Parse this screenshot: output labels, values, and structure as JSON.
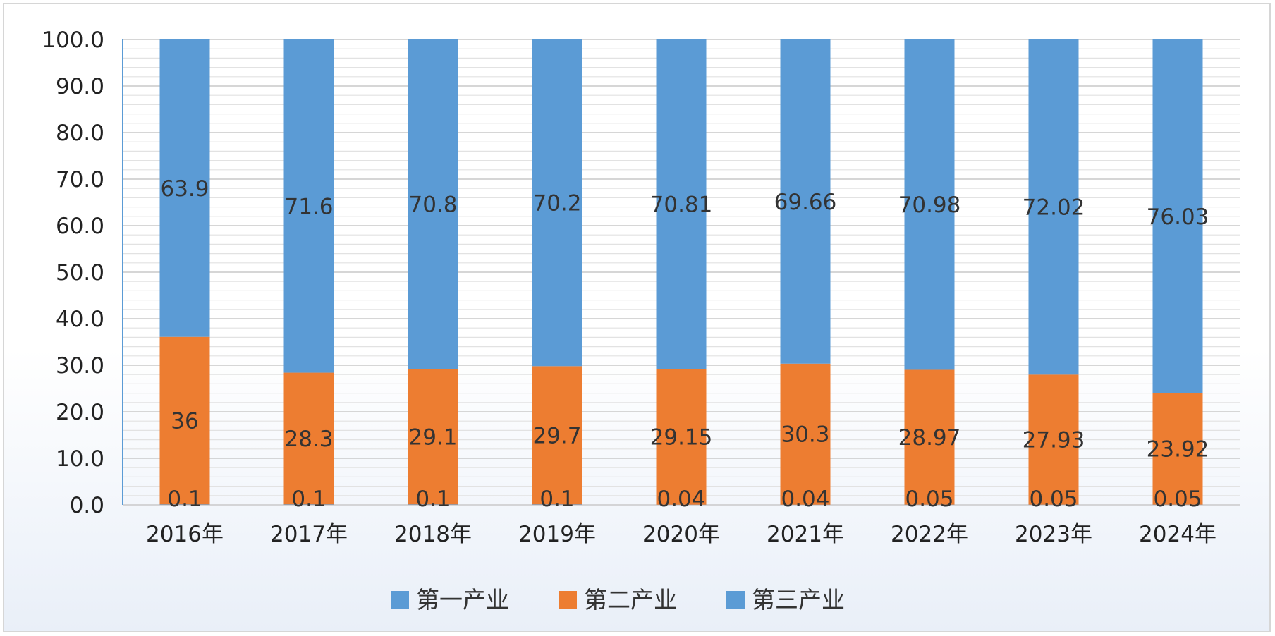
{
  "chart_data": {
    "type": "bar",
    "stacked": true,
    "categories": [
      "2016年",
      "2017年",
      "2018年",
      "2019年",
      "2020年",
      "2021年",
      "2022年",
      "2023年",
      "2024年"
    ],
    "series": [
      {
        "name": "第一产业",
        "color": "#5b9bd5",
        "values": [
          0.1,
          0.1,
          0.1,
          0.1,
          0.04,
          0.04,
          0.05,
          0.05,
          0.05
        ],
        "labels": [
          "0.1",
          "0.1",
          "0.1",
          "0.1",
          "0.04",
          "0.04",
          "0.05",
          "0.05",
          "0.05"
        ]
      },
      {
        "name": "第二产业",
        "color": "#ed7d31",
        "values": [
          36,
          28.3,
          29.1,
          29.7,
          29.15,
          30.3,
          28.97,
          27.93,
          23.92
        ],
        "labels": [
          "36",
          "28.3",
          "29.1",
          "29.7",
          "29.15",
          "30.3",
          "28.97",
          "27.93",
          "23.92"
        ]
      },
      {
        "name": "第三产业",
        "color": "#5b9bd5",
        "values": [
          63.9,
          71.6,
          70.8,
          70.2,
          70.81,
          69.66,
          70.98,
          72.02,
          76.03
        ],
        "labels": [
          "63.9",
          "71.6",
          "70.8",
          "70.2",
          "70.81",
          "69.66",
          "70.98",
          "72.02",
          "76.03"
        ]
      }
    ],
    "ylim": [
      0,
      100
    ],
    "yticks": [
      "0.0",
      "10.0",
      "20.0",
      "30.0",
      "40.0",
      "50.0",
      "60.0",
      "70.0",
      "80.0",
      "90.0",
      "100.0"
    ],
    "legend_position": "bottom",
    "grid": true
  }
}
